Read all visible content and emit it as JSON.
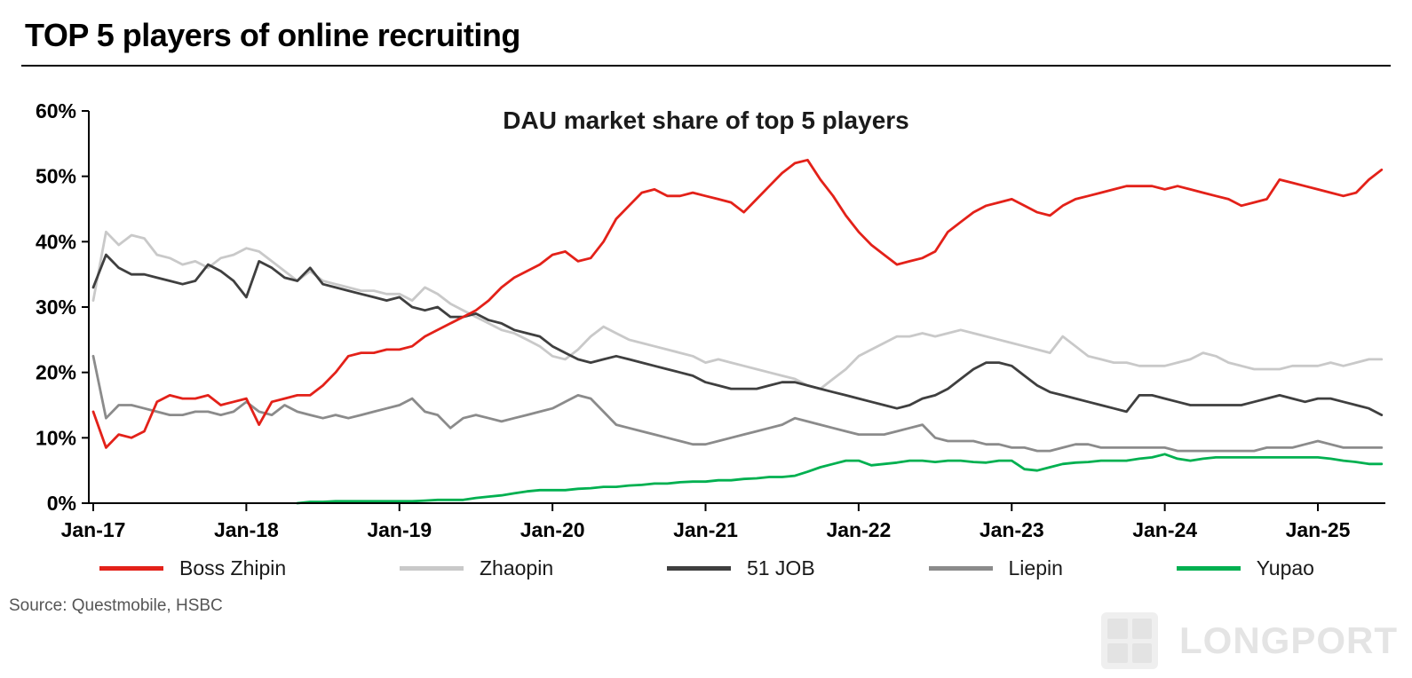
{
  "header": {
    "title": "TOP 5 players of online recruiting"
  },
  "source": "Source: Questmobile, HSBC",
  "watermark": {
    "brand": "LONGPORT"
  },
  "chart_data": {
    "type": "line",
    "title": "DAU market share of top 5 players",
    "xlabel": "",
    "ylabel": "",
    "ylim": [
      0,
      60
    ],
    "grid": false,
    "legend_position": "bottom",
    "x_start": "Jan-17",
    "x_end": "Jun-25",
    "x_interval": "monthly",
    "x_tick_labels": [
      "Jan-17",
      "Jan-18",
      "Jan-19",
      "Jan-20",
      "Jan-21",
      "Jan-22",
      "Jan-23",
      "Jan-24",
      "Jan-25"
    ],
    "y_tick_labels": [
      "0%",
      "10%",
      "20%",
      "30%",
      "40%",
      "50%",
      "60%"
    ],
    "series": [
      {
        "name": "Boss Zhipin",
        "color": "#e32119",
        "values": [
          14,
          8.5,
          10.5,
          10,
          11,
          15.5,
          16.5,
          16,
          16,
          16.5,
          15,
          15.5,
          16,
          12,
          15.5,
          16,
          16.5,
          16.5,
          18,
          20,
          22.5,
          23,
          23,
          23.5,
          23.5,
          24,
          25.5,
          26.5,
          27.5,
          28.5,
          29.5,
          31,
          33,
          34.5,
          35.5,
          36.5,
          38,
          38.5,
          37,
          37.5,
          40,
          43.5,
          45.5,
          47.5,
          48,
          47,
          47,
          47.5,
          47,
          46.5,
          46,
          44.5,
          46.5,
          48.5,
          50.5,
          52,
          52.5,
          49.5,
          47,
          44,
          41.5,
          39.5,
          38,
          36.5,
          37,
          37.5,
          38.5,
          41.5,
          43,
          44.5,
          45.5,
          46,
          46.5,
          45.5,
          44.5,
          44,
          45.5,
          46.5,
          47,
          47.5,
          48,
          48.5,
          48.5,
          48.5,
          48,
          48.5,
          48,
          47.5,
          47,
          46.5,
          45.5,
          46,
          46.5,
          49.5,
          49,
          48.5,
          48,
          47.5,
          47,
          47.5,
          49.5,
          51
        ]
      },
      {
        "name": "Zhaopin",
        "color": "#c9c9c9",
        "values": [
          31,
          41.5,
          39.5,
          41,
          40.5,
          38,
          37.5,
          36.5,
          37,
          36,
          37.5,
          38,
          39,
          38.5,
          37,
          35.5,
          34,
          35.5,
          34,
          33.5,
          33,
          32.5,
          32.5,
          32,
          32,
          31,
          33,
          32,
          30.5,
          29.5,
          28.5,
          27.5,
          26.5,
          26,
          25,
          24,
          22.5,
          22,
          23.5,
          25.5,
          27,
          26,
          25,
          24.5,
          24,
          23.5,
          23,
          22.5,
          21.5,
          22,
          21.5,
          21,
          20.5,
          20,
          19.5,
          19,
          18,
          17.5,
          19,
          20.5,
          22.5,
          23.5,
          24.5,
          25.5,
          25.5,
          26,
          25.5,
          26,
          26.5,
          26,
          25.5,
          25,
          24.5,
          24,
          23.5,
          23,
          25.5,
          24,
          22.5,
          22,
          21.5,
          21.5,
          21,
          21,
          21,
          21.5,
          22,
          23,
          22.5,
          21.5,
          21,
          20.5,
          20.5,
          20.5,
          21,
          21,
          21,
          21.5,
          21,
          21.5,
          22,
          22
        ]
      },
      {
        "name": "51 JOB",
        "color": "#3f3f3f",
        "values": [
          33,
          38,
          36,
          35,
          35,
          34.5,
          34,
          33.5,
          34,
          36.5,
          35.5,
          34,
          31.5,
          37,
          36,
          34.5,
          34,
          36,
          33.5,
          33,
          32.5,
          32,
          31.5,
          31,
          31.5,
          30,
          29.5,
          30,
          28.5,
          28.5,
          29,
          28,
          27.5,
          26.5,
          26,
          25.5,
          24,
          23,
          22,
          21.5,
          22,
          22.5,
          22,
          21.5,
          21,
          20.5,
          20,
          19.5,
          18.5,
          18,
          17.5,
          17.5,
          17.5,
          18,
          18.5,
          18.5,
          18,
          17.5,
          17,
          16.5,
          16,
          15.5,
          15,
          14.5,
          15,
          16,
          16.5,
          17.5,
          19,
          20.5,
          21.5,
          21.5,
          21,
          19.5,
          18,
          17,
          16.5,
          16,
          15.5,
          15,
          14.5,
          14,
          16.5,
          16.5,
          16,
          15.5,
          15,
          15,
          15,
          15,
          15,
          15.5,
          16,
          16.5,
          16,
          15.5,
          16,
          16,
          15.5,
          15,
          14.5,
          13.5
        ]
      },
      {
        "name": "Liepin",
        "color": "#8b8b8b",
        "values": [
          22.5,
          13,
          15,
          15,
          14.5,
          14,
          13.5,
          13.5,
          14,
          14,
          13.5,
          14,
          15.5,
          14,
          13.5,
          15,
          14,
          13.5,
          13,
          13.5,
          13,
          13.5,
          14,
          14.5,
          15,
          16,
          14,
          13.5,
          11.5,
          13,
          13.5,
          13,
          12.5,
          13,
          13.5,
          14,
          14.5,
          15.5,
          16.5,
          16,
          14,
          12,
          11.5,
          11,
          10.5,
          10,
          9.5,
          9,
          9,
          9.5,
          10,
          10.5,
          11,
          11.5,
          12,
          13,
          12.5,
          12,
          11.5,
          11,
          10.5,
          10.5,
          10.5,
          11,
          11.5,
          12,
          10,
          9.5,
          9.5,
          9.5,
          9,
          9,
          8.5,
          8.5,
          8,
          8,
          8.5,
          9,
          9,
          8.5,
          8.5,
          8.5,
          8.5,
          8.5,
          8.5,
          8,
          8,
          8,
          8,
          8,
          8,
          8,
          8.5,
          8.5,
          8.5,
          9,
          9.5,
          9,
          8.5,
          8.5,
          8.5,
          8.5
        ]
      },
      {
        "name": "Yupao",
        "color": "#00b050",
        "values": [
          0,
          0,
          0,
          0,
          0,
          0,
          0,
          0,
          0,
          0,
          0,
          0,
          0,
          0,
          0,
          0,
          0,
          0.2,
          0.2,
          0.3,
          0.3,
          0.3,
          0.3,
          0.3,
          0.3,
          0.3,
          0.4,
          0.5,
          0.5,
          0.5,
          0.8,
          1,
          1.2,
          1.5,
          1.8,
          2,
          2,
          2,
          2.2,
          2.3,
          2.5,
          2.5,
          2.7,
          2.8,
          3,
          3,
          3.2,
          3.3,
          3.3,
          3.5,
          3.5,
          3.7,
          3.8,
          4,
          4,
          4.2,
          4.8,
          5.5,
          6,
          6.5,
          6.5,
          5.8,
          6,
          6.2,
          6.5,
          6.5,
          6.3,
          6.5,
          6.5,
          6.3,
          6.2,
          6.5,
          6.5,
          5.2,
          5,
          5.5,
          6,
          6.2,
          6.3,
          6.5,
          6.5,
          6.5,
          6.8,
          7,
          7.5,
          6.8,
          6.5,
          6.8,
          7,
          7,
          7,
          7,
          7,
          7,
          7,
          7,
          7,
          6.8,
          6.5,
          6.3,
          6,
          6
        ]
      }
    ]
  }
}
